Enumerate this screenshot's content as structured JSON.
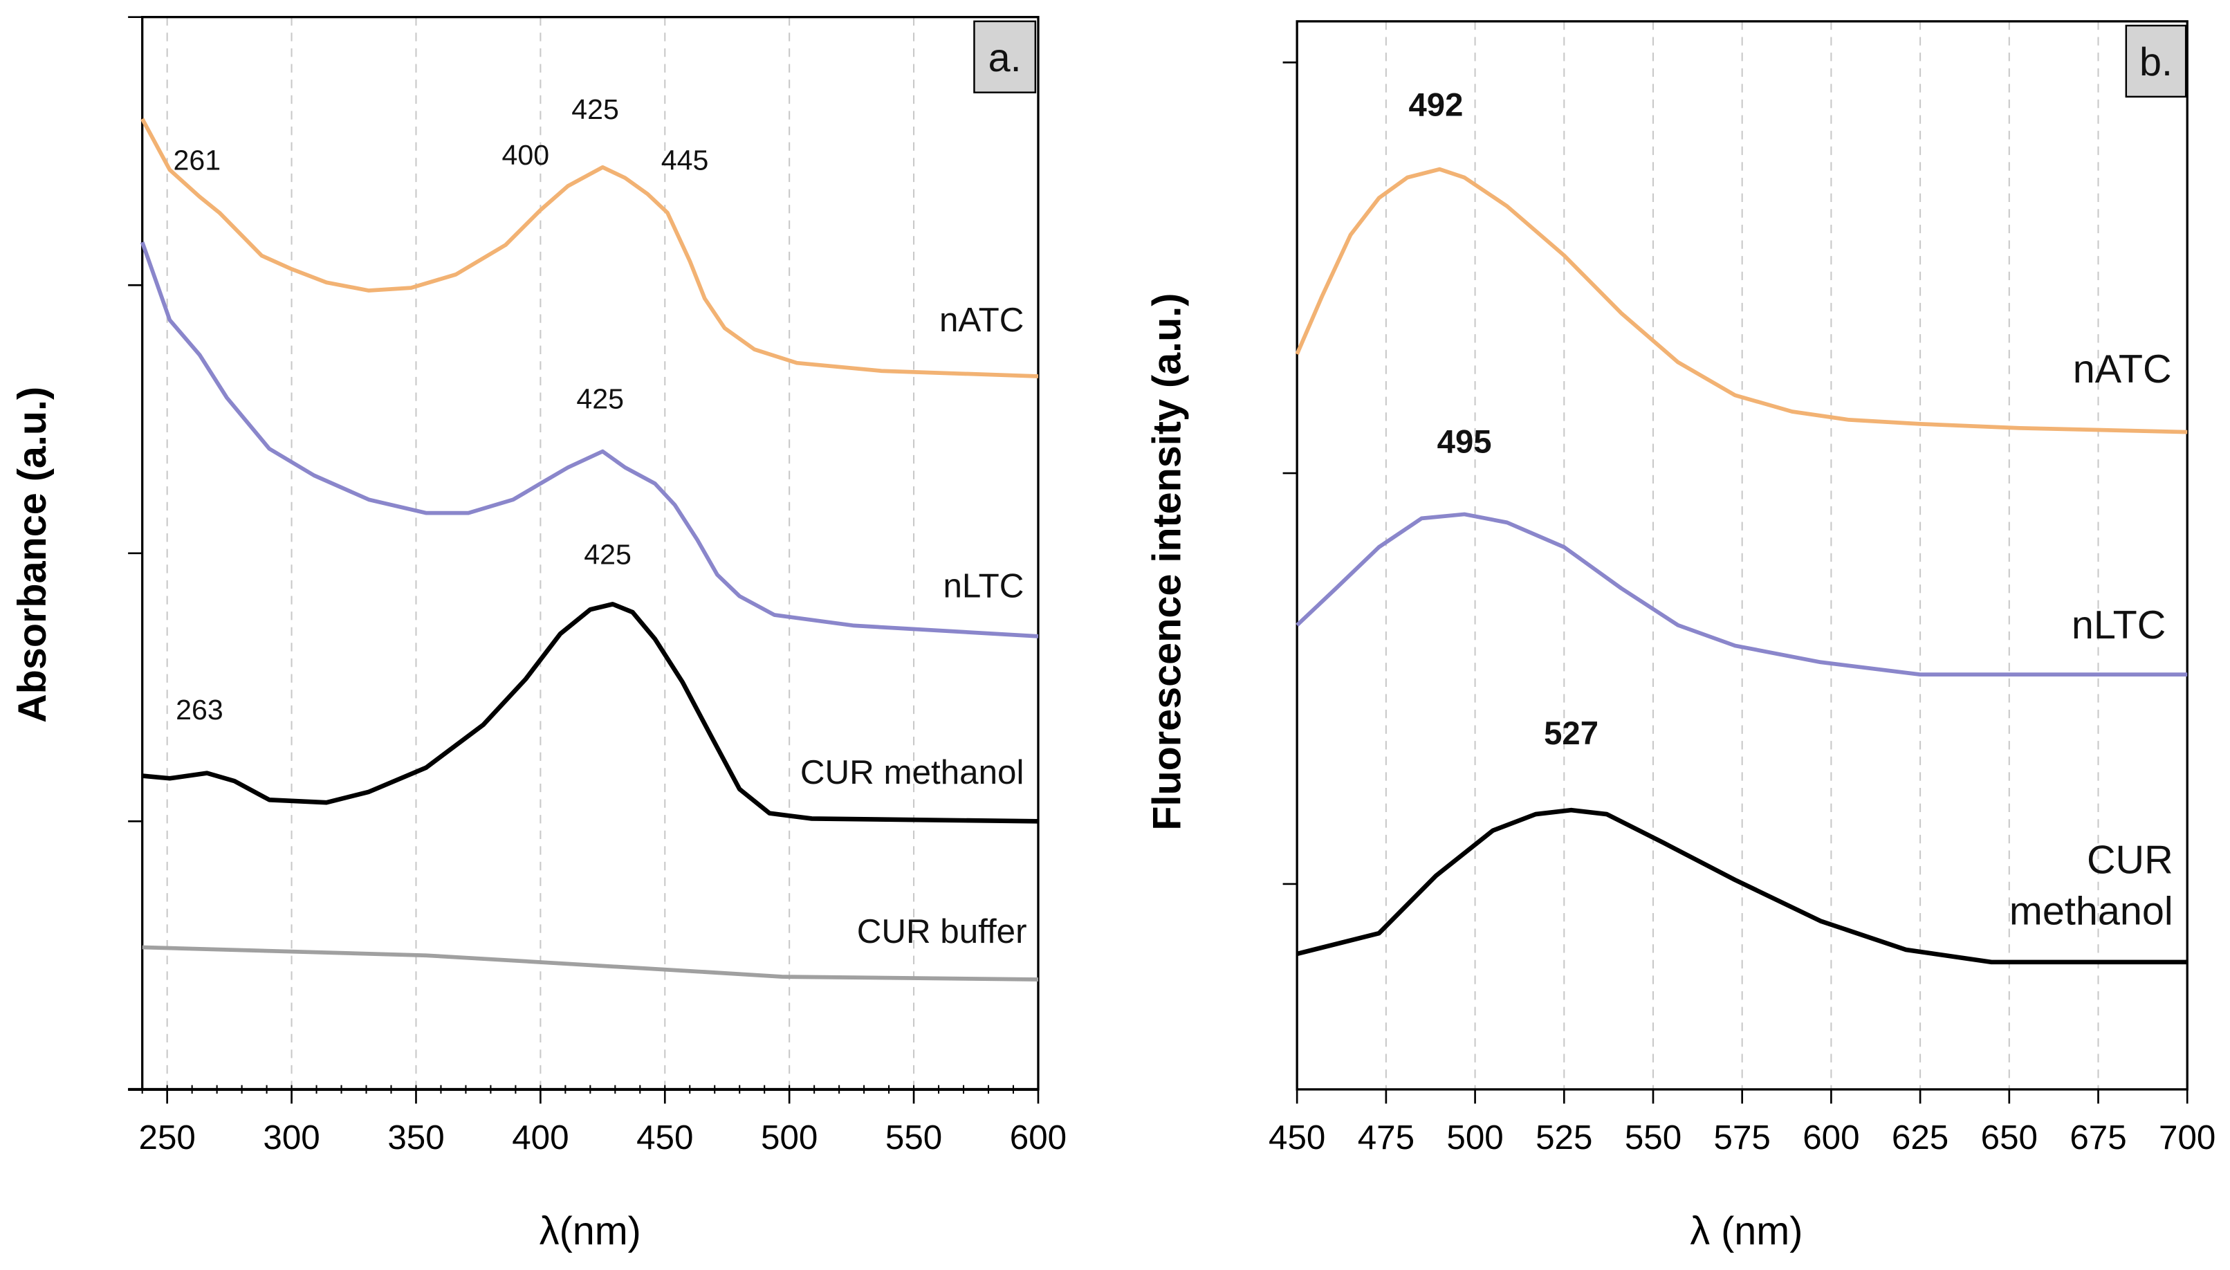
{
  "chart_data": [
    {
      "panel": "a.",
      "type": "line",
      "xlabel": "λ(nm)",
      "ylabel": "Absorbance (a.u.)",
      "xlim": [
        240,
        600
      ],
      "ylim": [
        0,
        4
      ],
      "xticks": [
        250,
        300,
        350,
        400,
        450,
        500,
        550,
        600
      ],
      "yticks": [
        0,
        1,
        2,
        3,
        4
      ],
      "grid": "vertical dashed",
      "series": [
        {
          "name": "nATC",
          "color": "#F2B273",
          "x": [
            240,
            251,
            263,
            271,
            288,
            300,
            314,
            331,
            348,
            366,
            386,
            400,
            411,
            425,
            434,
            443,
            451,
            460,
            466,
            474,
            486,
            503,
            537,
            600
          ],
          "y": [
            3.62,
            3.43,
            3.33,
            3.27,
            3.11,
            3.06,
            3.01,
            2.98,
            2.99,
            3.04,
            3.15,
            3.28,
            3.37,
            3.44,
            3.4,
            3.34,
            3.27,
            3.09,
            2.95,
            2.84,
            2.76,
            2.71,
            2.68,
            2.66
          ]
        },
        {
          "name": "nLTC",
          "color": "#8A86CB",
          "x": [
            240,
            251,
            263,
            274,
            291,
            309,
            331,
            354,
            371,
            389,
            400,
            411,
            425,
            434,
            446,
            454,
            463,
            471,
            480,
            494,
            526,
            600
          ],
          "y": [
            3.16,
            2.87,
            2.74,
            2.58,
            2.39,
            2.29,
            2.2,
            2.15,
            2.15,
            2.2,
            2.26,
            2.32,
            2.38,
            2.32,
            2.26,
            2.18,
            2.05,
            1.92,
            1.84,
            1.77,
            1.73,
            1.69
          ]
        },
        {
          "name": "CUR methanol",
          "color": "#000000",
          "x": [
            240,
            251,
            266,
            277,
            291,
            314,
            331,
            354,
            377,
            394,
            408,
            420,
            429,
            437,
            446,
            457,
            469,
            480,
            492,
            509,
            600
          ],
          "y": [
            1.17,
            1.16,
            1.18,
            1.15,
            1.08,
            1.07,
            1.11,
            1.2,
            1.36,
            1.53,
            1.7,
            1.79,
            1.81,
            1.78,
            1.68,
            1.52,
            1.31,
            1.12,
            1.03,
            1.01,
            1.0
          ]
        },
        {
          "name": "CUR buffer",
          "color": "#A0A0A0",
          "x": [
            240,
            354,
            463,
            497,
            600
          ],
          "y": [
            0.53,
            0.5,
            0.44,
            0.42,
            0.41
          ]
        }
      ],
      "annotations": [
        {
          "text": "261",
          "x": 262,
          "y": 3.43
        },
        {
          "text": "400",
          "x": 394,
          "y": 3.45
        },
        {
          "text": "425",
          "x": 422,
          "y": 3.62
        },
        {
          "text": "445",
          "x": 458,
          "y": 3.43
        },
        {
          "text": "425",
          "x": 424,
          "y": 2.54
        },
        {
          "text": "425",
          "x": 427,
          "y": 1.96
        },
        {
          "text": "263",
          "x": 263,
          "y": 1.38
        }
      ]
    },
    {
      "panel": "b.",
      "type": "line",
      "xlabel": "λ (nm)",
      "ylabel": "Fluorescence intensity (a.u.)",
      "xlim": [
        450,
        700
      ],
      "ylim": [
        0.5,
        3.1
      ],
      "xticks": [
        450,
        475,
        500,
        525,
        550,
        575,
        600,
        625,
        650,
        675,
        700
      ],
      "yticks": [
        1,
        2,
        3
      ],
      "grid": "vertical dashed",
      "series": [
        {
          "name": "nATC",
          "color": "#F2B273",
          "x": [
            450,
            457,
            465,
            473,
            481,
            490,
            497,
            509,
            525,
            541,
            557,
            573,
            589,
            605,
            625,
            653,
            700
          ],
          "y": [
            2.29,
            2.43,
            2.58,
            2.67,
            2.72,
            2.74,
            2.72,
            2.65,
            2.53,
            2.39,
            2.27,
            2.19,
            2.15,
            2.13,
            2.12,
            2.11,
            2.1
          ]
        },
        {
          "name": "nLTC",
          "color": "#8A86CB",
          "x": [
            450,
            461,
            473,
            485,
            497,
            509,
            525,
            541,
            557,
            573,
            597,
            625,
            700
          ],
          "y": [
            1.63,
            1.72,
            1.82,
            1.89,
            1.9,
            1.88,
            1.82,
            1.72,
            1.63,
            1.58,
            1.54,
            1.51,
            1.51
          ]
        },
        {
          "name": "CUR methanol",
          "color": "#000000",
          "x": [
            450,
            473,
            489,
            505,
            517,
            527,
            537,
            553,
            573,
            597,
            621,
            645,
            700
          ],
          "y": [
            0.83,
            0.88,
            1.02,
            1.13,
            1.17,
            1.18,
            1.17,
            1.1,
            1.01,
            0.91,
            0.84,
            0.81,
            0.81
          ]
        }
      ],
      "annotations": [
        {
          "text": "492",
          "x": 489,
          "y": 2.87
        },
        {
          "text": "495",
          "x": 497,
          "y": 2.05
        },
        {
          "text": "527",
          "x": 527,
          "y": 1.34
        }
      ]
    }
  ],
  "labels": {
    "a_nATC": "nATC",
    "a_nLTC": "nLTC",
    "a_cur_meth": "CUR methanol",
    "a_cur_buf": "CUR buffer",
    "b_nATC": "nATC",
    "b_nLTC": "nLTC",
    "b_cur_1": "CUR",
    "b_cur_2": "methanol"
  }
}
